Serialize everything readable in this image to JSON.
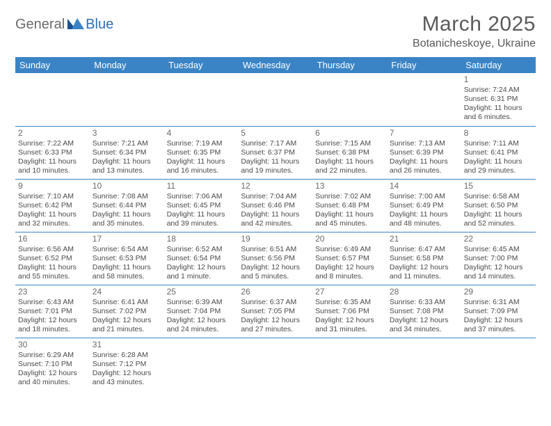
{
  "logo": {
    "general": "General",
    "blue": "Blue"
  },
  "title": "March 2025",
  "location": "Botanicheskoye, Ukraine",
  "colors": {
    "header_bg": "#3a84c6",
    "header_text": "#ffffff",
    "border": "#3a84c6",
    "text": "#4a4a4a",
    "title_text": "#5a5a5a",
    "logo_gray": "#6b6b6b",
    "logo_blue": "#2d6fb5"
  },
  "weekdays": [
    "Sunday",
    "Monday",
    "Tuesday",
    "Wednesday",
    "Thursday",
    "Friday",
    "Saturday"
  ],
  "weeks": [
    [
      null,
      null,
      null,
      null,
      null,
      null,
      {
        "n": "1",
        "sr": "Sunrise: 7:24 AM",
        "ss": "Sunset: 6:31 PM",
        "dl1": "Daylight: 11 hours",
        "dl2": "and 6 minutes."
      }
    ],
    [
      {
        "n": "2",
        "sr": "Sunrise: 7:22 AM",
        "ss": "Sunset: 6:33 PM",
        "dl1": "Daylight: 11 hours",
        "dl2": "and 10 minutes."
      },
      {
        "n": "3",
        "sr": "Sunrise: 7:21 AM",
        "ss": "Sunset: 6:34 PM",
        "dl1": "Daylight: 11 hours",
        "dl2": "and 13 minutes."
      },
      {
        "n": "4",
        "sr": "Sunrise: 7:19 AM",
        "ss": "Sunset: 6:35 PM",
        "dl1": "Daylight: 11 hours",
        "dl2": "and 16 minutes."
      },
      {
        "n": "5",
        "sr": "Sunrise: 7:17 AM",
        "ss": "Sunset: 6:37 PM",
        "dl1": "Daylight: 11 hours",
        "dl2": "and 19 minutes."
      },
      {
        "n": "6",
        "sr": "Sunrise: 7:15 AM",
        "ss": "Sunset: 6:38 PM",
        "dl1": "Daylight: 11 hours",
        "dl2": "and 22 minutes."
      },
      {
        "n": "7",
        "sr": "Sunrise: 7:13 AM",
        "ss": "Sunset: 6:39 PM",
        "dl1": "Daylight: 11 hours",
        "dl2": "and 26 minutes."
      },
      {
        "n": "8",
        "sr": "Sunrise: 7:11 AM",
        "ss": "Sunset: 6:41 PM",
        "dl1": "Daylight: 11 hours",
        "dl2": "and 29 minutes."
      }
    ],
    [
      {
        "n": "9",
        "sr": "Sunrise: 7:10 AM",
        "ss": "Sunset: 6:42 PM",
        "dl1": "Daylight: 11 hours",
        "dl2": "and 32 minutes."
      },
      {
        "n": "10",
        "sr": "Sunrise: 7:08 AM",
        "ss": "Sunset: 6:44 PM",
        "dl1": "Daylight: 11 hours",
        "dl2": "and 35 minutes."
      },
      {
        "n": "11",
        "sr": "Sunrise: 7:06 AM",
        "ss": "Sunset: 6:45 PM",
        "dl1": "Daylight: 11 hours",
        "dl2": "and 39 minutes."
      },
      {
        "n": "12",
        "sr": "Sunrise: 7:04 AM",
        "ss": "Sunset: 6:46 PM",
        "dl1": "Daylight: 11 hours",
        "dl2": "and 42 minutes."
      },
      {
        "n": "13",
        "sr": "Sunrise: 7:02 AM",
        "ss": "Sunset: 6:48 PM",
        "dl1": "Daylight: 11 hours",
        "dl2": "and 45 minutes."
      },
      {
        "n": "14",
        "sr": "Sunrise: 7:00 AM",
        "ss": "Sunset: 6:49 PM",
        "dl1": "Daylight: 11 hours",
        "dl2": "and 48 minutes."
      },
      {
        "n": "15",
        "sr": "Sunrise: 6:58 AM",
        "ss": "Sunset: 6:50 PM",
        "dl1": "Daylight: 11 hours",
        "dl2": "and 52 minutes."
      }
    ],
    [
      {
        "n": "16",
        "sr": "Sunrise: 6:56 AM",
        "ss": "Sunset: 6:52 PM",
        "dl1": "Daylight: 11 hours",
        "dl2": "and 55 minutes."
      },
      {
        "n": "17",
        "sr": "Sunrise: 6:54 AM",
        "ss": "Sunset: 6:53 PM",
        "dl1": "Daylight: 11 hours",
        "dl2": "and 58 minutes."
      },
      {
        "n": "18",
        "sr": "Sunrise: 6:52 AM",
        "ss": "Sunset: 6:54 PM",
        "dl1": "Daylight: 12 hours",
        "dl2": "and 1 minute."
      },
      {
        "n": "19",
        "sr": "Sunrise: 6:51 AM",
        "ss": "Sunset: 6:56 PM",
        "dl1": "Daylight: 12 hours",
        "dl2": "and 5 minutes."
      },
      {
        "n": "20",
        "sr": "Sunrise: 6:49 AM",
        "ss": "Sunset: 6:57 PM",
        "dl1": "Daylight: 12 hours",
        "dl2": "and 8 minutes."
      },
      {
        "n": "21",
        "sr": "Sunrise: 6:47 AM",
        "ss": "Sunset: 6:58 PM",
        "dl1": "Daylight: 12 hours",
        "dl2": "and 11 minutes."
      },
      {
        "n": "22",
        "sr": "Sunrise: 6:45 AM",
        "ss": "Sunset: 7:00 PM",
        "dl1": "Daylight: 12 hours",
        "dl2": "and 14 minutes."
      }
    ],
    [
      {
        "n": "23",
        "sr": "Sunrise: 6:43 AM",
        "ss": "Sunset: 7:01 PM",
        "dl1": "Daylight: 12 hours",
        "dl2": "and 18 minutes."
      },
      {
        "n": "24",
        "sr": "Sunrise: 6:41 AM",
        "ss": "Sunset: 7:02 PM",
        "dl1": "Daylight: 12 hours",
        "dl2": "and 21 minutes."
      },
      {
        "n": "25",
        "sr": "Sunrise: 6:39 AM",
        "ss": "Sunset: 7:04 PM",
        "dl1": "Daylight: 12 hours",
        "dl2": "and 24 minutes."
      },
      {
        "n": "26",
        "sr": "Sunrise: 6:37 AM",
        "ss": "Sunset: 7:05 PM",
        "dl1": "Daylight: 12 hours",
        "dl2": "and 27 minutes."
      },
      {
        "n": "27",
        "sr": "Sunrise: 6:35 AM",
        "ss": "Sunset: 7:06 PM",
        "dl1": "Daylight: 12 hours",
        "dl2": "and 31 minutes."
      },
      {
        "n": "28",
        "sr": "Sunrise: 6:33 AM",
        "ss": "Sunset: 7:08 PM",
        "dl1": "Daylight: 12 hours",
        "dl2": "and 34 minutes."
      },
      {
        "n": "29",
        "sr": "Sunrise: 6:31 AM",
        "ss": "Sunset: 7:09 PM",
        "dl1": "Daylight: 12 hours",
        "dl2": "and 37 minutes."
      }
    ],
    [
      {
        "n": "30",
        "sr": "Sunrise: 6:29 AM",
        "ss": "Sunset: 7:10 PM",
        "dl1": "Daylight: 12 hours",
        "dl2": "and 40 minutes."
      },
      {
        "n": "31",
        "sr": "Sunrise: 6:28 AM",
        "ss": "Sunset: 7:12 PM",
        "dl1": "Daylight: 12 hours",
        "dl2": "and 43 minutes."
      },
      null,
      null,
      null,
      null,
      null
    ]
  ]
}
